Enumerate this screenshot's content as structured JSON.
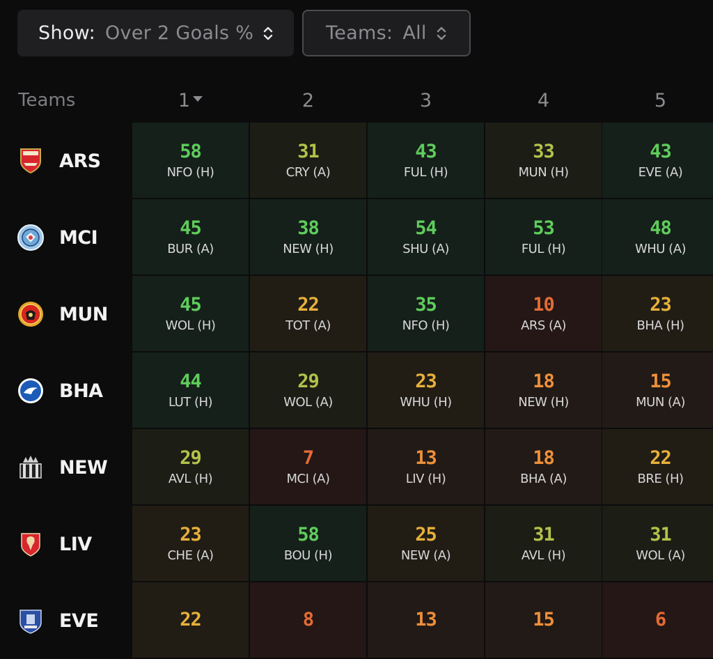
{
  "filters": {
    "show": {
      "label": "Show:",
      "value": "Over 2 Goals %"
    },
    "teams": {
      "label": "Teams:",
      "value": "All"
    }
  },
  "table": {
    "teams_header": "Teams",
    "columns": [
      "1",
      "2",
      "3",
      "4",
      "5"
    ],
    "sorted_column": "1",
    "rows": [
      {
        "team": "ARS",
        "crest": "arsenal-crest",
        "cells": [
          {
            "value": "58",
            "opp": "NFO (H)"
          },
          {
            "value": "31",
            "opp": "CRY (A)"
          },
          {
            "value": "43",
            "opp": "FUL (H)"
          },
          {
            "value": "33",
            "opp": "MUN (H)"
          },
          {
            "value": "43",
            "opp": "EVE (A)"
          }
        ]
      },
      {
        "team": "MCI",
        "crest": "man-city-crest",
        "cells": [
          {
            "value": "45",
            "opp": "BUR (A)"
          },
          {
            "value": "38",
            "opp": "NEW (H)"
          },
          {
            "value": "54",
            "opp": "SHU (A)"
          },
          {
            "value": "53",
            "opp": "FUL (H)"
          },
          {
            "value": "48",
            "opp": "WHU (A)"
          }
        ]
      },
      {
        "team": "MUN",
        "crest": "man-utd-crest",
        "cells": [
          {
            "value": "45",
            "opp": "WOL (H)"
          },
          {
            "value": "22",
            "opp": "TOT (A)"
          },
          {
            "value": "35",
            "opp": "NFO (H)"
          },
          {
            "value": "10",
            "opp": "ARS (A)"
          },
          {
            "value": "23",
            "opp": "BHA (H)"
          }
        ]
      },
      {
        "team": "BHA",
        "crest": "brighton-crest",
        "cells": [
          {
            "value": "44",
            "opp": "LUT (H)"
          },
          {
            "value": "29",
            "opp": "WOL (A)"
          },
          {
            "value": "23",
            "opp": "WHU (H)"
          },
          {
            "value": "18",
            "opp": "NEW (H)"
          },
          {
            "value": "15",
            "opp": "MUN (A)"
          }
        ]
      },
      {
        "team": "NEW",
        "crest": "newcastle-crest",
        "cells": [
          {
            "value": "29",
            "opp": "AVL (H)"
          },
          {
            "value": "7",
            "opp": "MCI (A)"
          },
          {
            "value": "13",
            "opp": "LIV (H)"
          },
          {
            "value": "18",
            "opp": "BHA (A)"
          },
          {
            "value": "22",
            "opp": "BRE (H)"
          }
        ]
      },
      {
        "team": "LIV",
        "crest": "liverpool-crest",
        "cells": [
          {
            "value": "23",
            "opp": "CHE (A)"
          },
          {
            "value": "58",
            "opp": "BOU (H)"
          },
          {
            "value": "25",
            "opp": "NEW (A)"
          },
          {
            "value": "31",
            "opp": "AVL (H)"
          },
          {
            "value": "31",
            "opp": "WOL (A)"
          }
        ]
      },
      {
        "team": "EVE",
        "crest": "everton-crest",
        "cells": [
          {
            "value": "22",
            "opp": ""
          },
          {
            "value": "8",
            "opp": ""
          },
          {
            "value": "13",
            "opp": ""
          },
          {
            "value": "15",
            "opp": ""
          },
          {
            "value": "6",
            "opp": ""
          }
        ]
      }
    ]
  },
  "colors": {
    "high": "#5fcd5c",
    "mid": "#b3c24a",
    "amber": "#e7b03b",
    "orange": "#ee8f3a",
    "low": "#e46b35"
  }
}
